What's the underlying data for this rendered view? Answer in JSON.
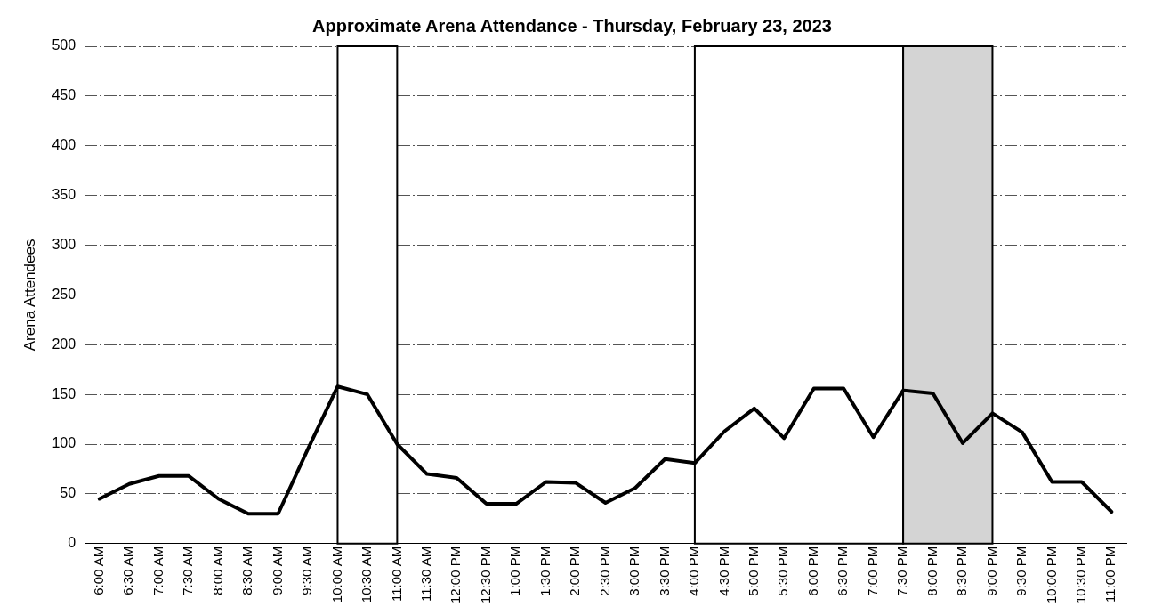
{
  "chart_data": {
    "type": "line",
    "title": "Approximate Arena Attendance - Thursday, February 23, 2023",
    "ylabel": "Arena Attendees",
    "categories": [
      "6:00 AM",
      "6:30 AM",
      "7:00 AM",
      "7:30 AM",
      "8:00 AM",
      "8:30 AM",
      "9:00 AM",
      "9:30 AM",
      "10:00 AM",
      "10:30 AM",
      "11:00 AM",
      "11:30 AM",
      "12:00 PM",
      "12:30 PM",
      "1:00 PM",
      "1:30 PM",
      "2:00 PM",
      "2:30 PM",
      "3:00 PM",
      "3:30 PM",
      "4:00 PM",
      "4:30 PM",
      "5:00 PM",
      "5:30 PM",
      "6:00 PM",
      "6:30 PM",
      "7:00 PM",
      "7:30 PM",
      "8:00 PM",
      "8:30 PM",
      "9:00 PM",
      "9:30 PM",
      "10:00 PM",
      "10:30 PM",
      "11:00 PM"
    ],
    "series": [
      {
        "color": "#000000",
        "values": [
          45,
          60,
          68,
          68,
          45,
          30,
          30,
          95,
          158,
          150,
          100,
          70,
          66,
          40,
          40,
          62,
          61,
          41,
          56,
          85,
          81,
          113,
          136,
          106,
          156,
          156,
          107,
          154,
          151,
          101,
          131,
          112,
          62,
          62,
          32
        ]
      }
    ],
    "ylim": [
      0,
      500
    ],
    "yticks": [
      0,
      50,
      100,
      150,
      200,
      250,
      300,
      350,
      400,
      450,
      500
    ],
    "grid": "y",
    "legend": false,
    "marker": "none",
    "line_style": "solid",
    "bands": [
      {
        "axis": "x",
        "from": "10:00 AM",
        "to": "11:00 AM",
        "color": "#ffffff"
      },
      {
        "axis": "x",
        "from": "4:00 PM",
        "to": "7:30 PM",
        "color": "#ffffff"
      },
      {
        "axis": "x",
        "from": "7:30 PM",
        "to": "9:00 PM",
        "color": "#d4d4d4"
      }
    ]
  }
}
